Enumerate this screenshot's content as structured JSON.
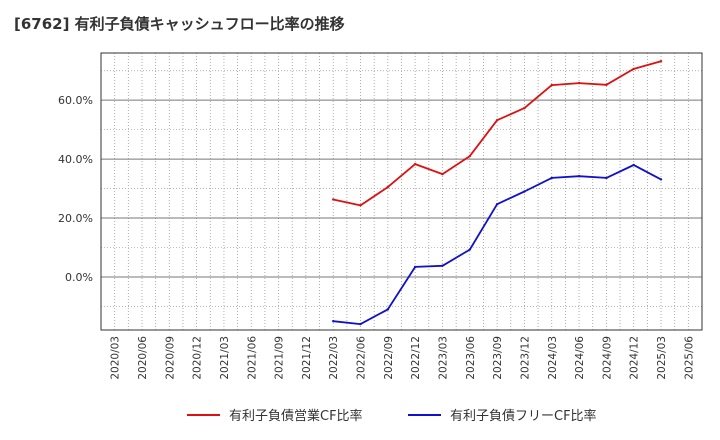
{
  "title": "[6762]  有利子負債キャッシュフロー比率の推移",
  "chart_data": {
    "type": "line",
    "title": "[6762]  有利子負債キャッシュフロー比率の推移",
    "xlabel": "",
    "ylabel": "",
    "x": [
      "2020/03",
      "2020/06",
      "2020/09",
      "2020/12",
      "2021/03",
      "2021/06",
      "2021/09",
      "2021/12",
      "2022/03",
      "2022/06",
      "2022/09",
      "2022/12",
      "2023/03",
      "2023/06",
      "2023/09",
      "2023/12",
      "2024/03",
      "2024/06",
      "2024/09",
      "2024/12",
      "2025/03",
      "2025/06"
    ],
    "y_ticks": [
      0,
      20,
      40,
      60
    ],
    "y_tick_labels": [
      "0.0%",
      "20.0%",
      "40.0%",
      "60.0%"
    ],
    "ylim": [
      -18,
      76
    ],
    "grid": true,
    "legend_position": "bottom",
    "series": [
      {
        "name": "有利子負債営業CF比率",
        "color": "#dd1111",
        "values": [
          null,
          null,
          null,
          null,
          null,
          null,
          null,
          null,
          26.3,
          24.3,
          30.5,
          38.3,
          34.9,
          41.0,
          53.2,
          57.3,
          65.1,
          65.8,
          65.2,
          70.6,
          73.2,
          null
        ]
      },
      {
        "name": "有利子負債フリーCF比率",
        "color": "#1111cc",
        "values": [
          null,
          null,
          null,
          null,
          null,
          null,
          null,
          null,
          -15.0,
          -16.0,
          -11.0,
          3.4,
          3.8,
          9.3,
          24.7,
          29.0,
          33.6,
          34.2,
          33.6,
          38.0,
          33.1,
          null
        ]
      }
    ]
  }
}
